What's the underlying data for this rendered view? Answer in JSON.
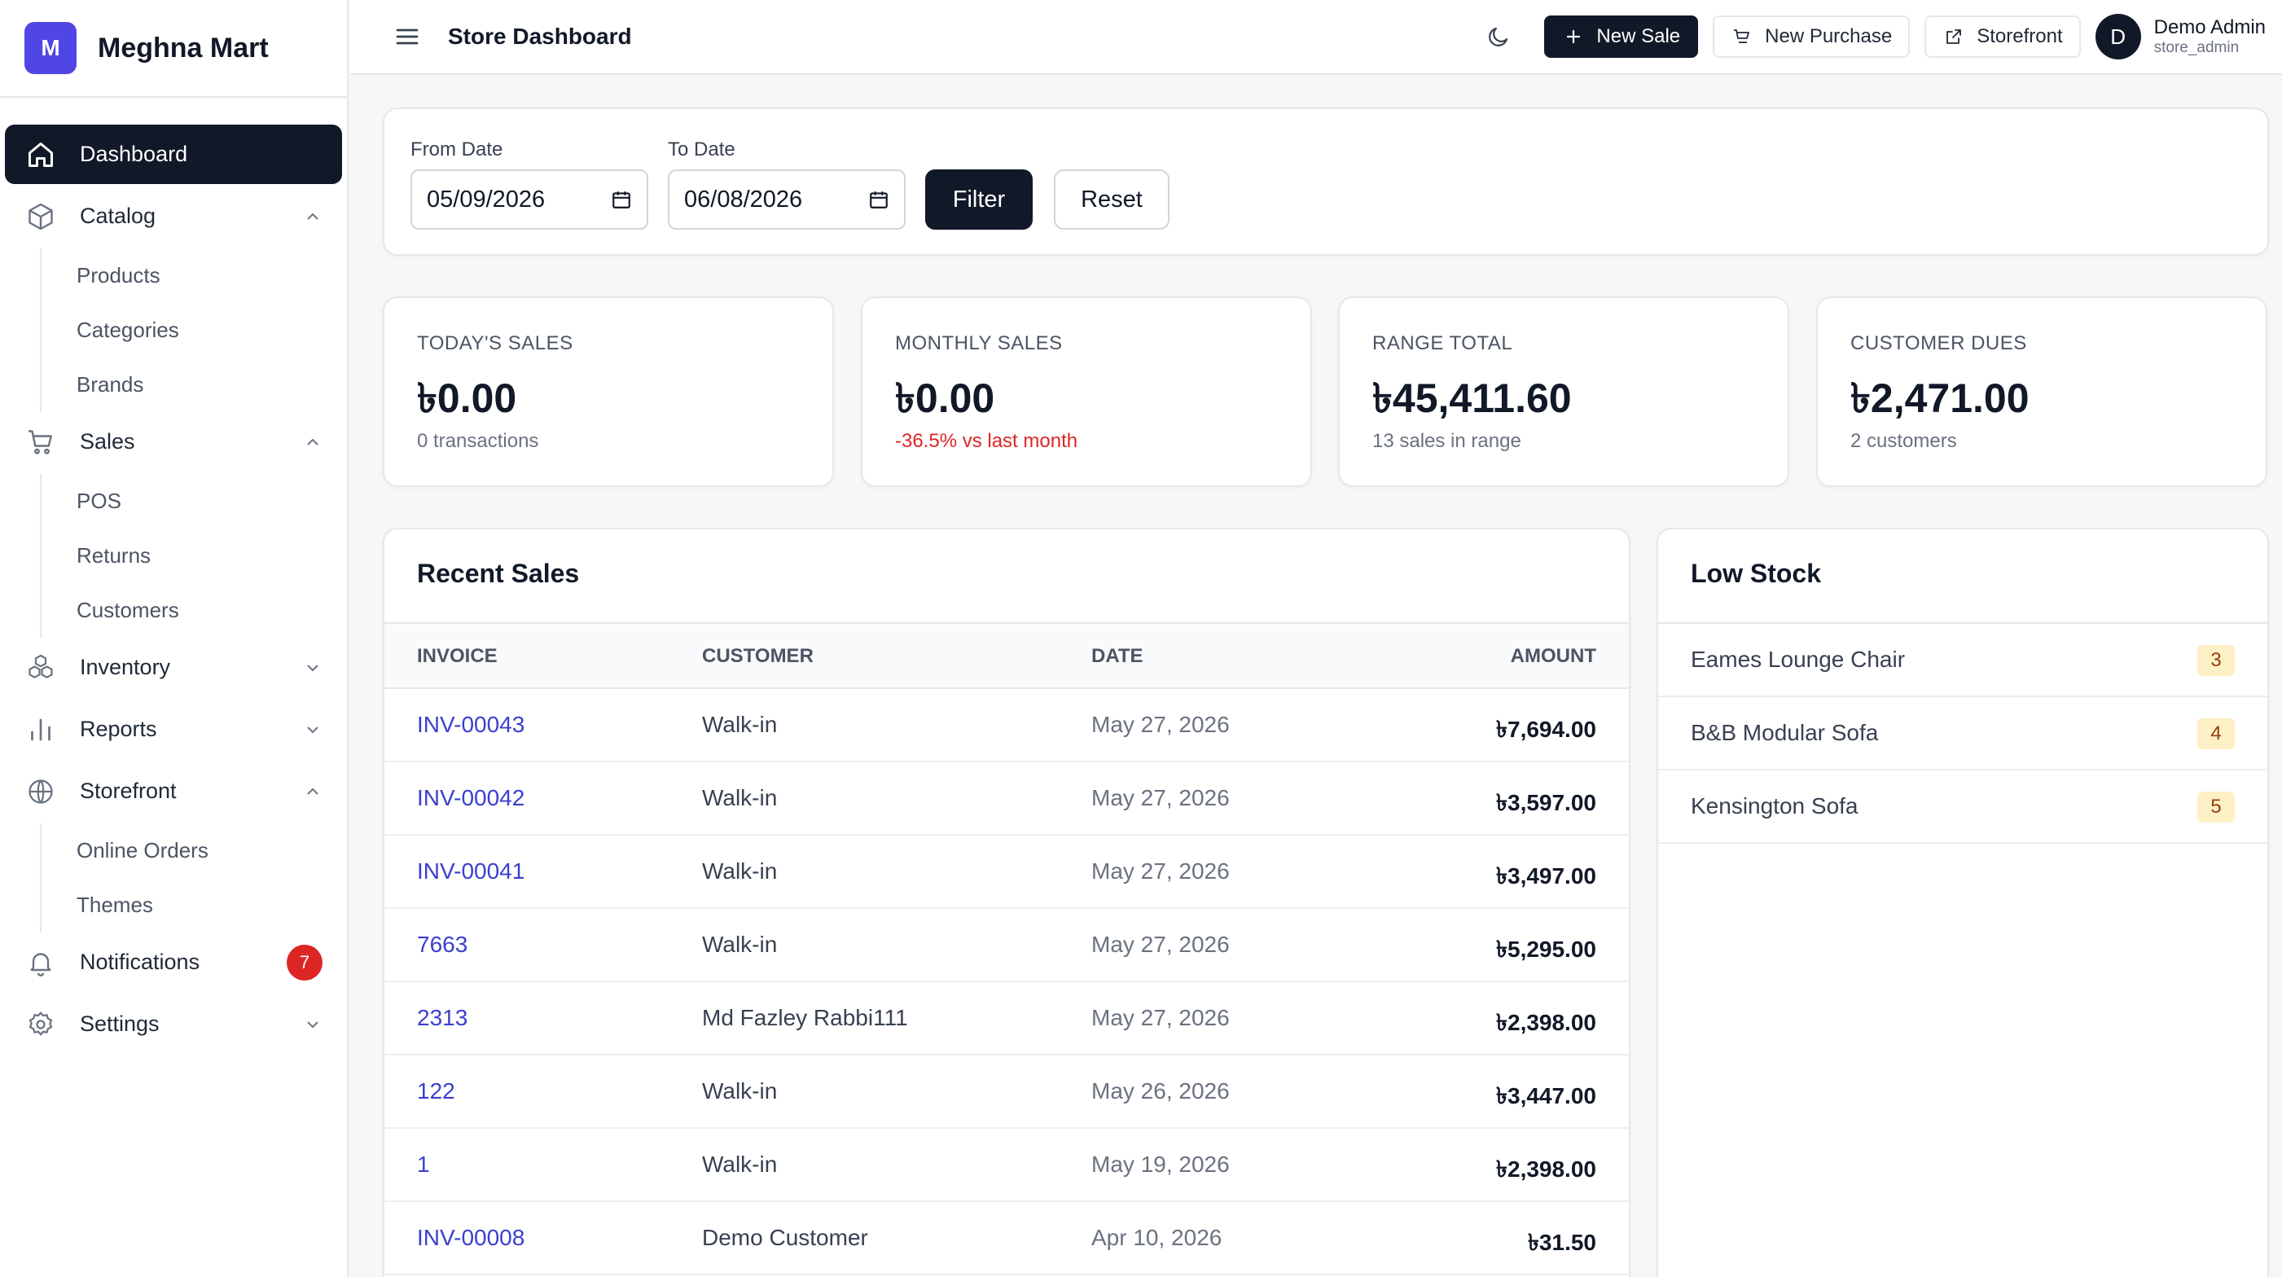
{
  "brand": {
    "initial": "M",
    "name": "Meghna Mart"
  },
  "sidebar": {
    "dashboard": "Dashboard",
    "catalog": {
      "label": "Catalog",
      "items": [
        "Products",
        "Categories",
        "Brands"
      ]
    },
    "sales": {
      "label": "Sales",
      "items": [
        "POS",
        "Returns",
        "Customers"
      ]
    },
    "inventory": "Inventory",
    "reports": "Reports",
    "storefront": {
      "label": "Storefront",
      "items": [
        "Online Orders",
        "Themes"
      ]
    },
    "notifications": {
      "label": "Notifications",
      "count": "7"
    },
    "settings": "Settings"
  },
  "header": {
    "title": "Store Dashboard",
    "new_sale": "New Sale",
    "new_purchase": "New Purchase",
    "storefront": "Storefront",
    "user": {
      "initial": "D",
      "name": "Demo Admin",
      "role": "store_admin"
    }
  },
  "filter": {
    "from_label": "From Date",
    "from_value": "05/09/2026",
    "to_label": "To Date",
    "to_value": "06/08/2026",
    "filter_button": "Filter",
    "reset_button": "Reset"
  },
  "stats": [
    {
      "label": "TODAY'S SALES",
      "value": "৳0.00",
      "sub": "0 transactions"
    },
    {
      "label": "MONTHLY SALES",
      "value": "৳0.00",
      "sub": "-36.5% vs last month"
    },
    {
      "label": "RANGE TOTAL",
      "value": "৳45,411.60",
      "sub": "13 sales in range"
    },
    {
      "label": "CUSTOMER DUES",
      "value": "৳2,471.00",
      "sub": "2 customers"
    }
  ],
  "recent_sales": {
    "title": "Recent Sales",
    "columns": {
      "invoice": "INVOICE",
      "customer": "CUSTOMER",
      "date": "DATE",
      "amount": "AMOUNT"
    },
    "rows": [
      {
        "invoice": "INV-00043",
        "customer": "Walk-in",
        "date": "May 27, 2026",
        "amount": "৳7,694.00"
      },
      {
        "invoice": "INV-00042",
        "customer": "Walk-in",
        "date": "May 27, 2026",
        "amount": "৳3,597.00"
      },
      {
        "invoice": "INV-00041",
        "customer": "Walk-in",
        "date": "May 27, 2026",
        "amount": "৳3,497.00"
      },
      {
        "invoice": "7663",
        "customer": "Walk-in",
        "date": "May 27, 2026",
        "amount": "৳5,295.00"
      },
      {
        "invoice": "2313",
        "customer": "Md Fazley Rabbi111",
        "date": "May 27, 2026",
        "amount": "৳2,398.00"
      },
      {
        "invoice": "122",
        "customer": "Walk-in",
        "date": "May 26, 2026",
        "amount": "৳3,447.00"
      },
      {
        "invoice": "1",
        "customer": "Walk-in",
        "date": "May 19, 2026",
        "amount": "৳2,398.00"
      },
      {
        "invoice": "INV-00008",
        "customer": "Demo Customer",
        "date": "Apr 10, 2026",
        "amount": "৳31.50"
      }
    ]
  },
  "low_stock": {
    "title": "Low Stock",
    "items": [
      {
        "name": "Eames Lounge Chair",
        "qty": "3"
      },
      {
        "name": "B&B Modular Sofa",
        "qty": "4"
      },
      {
        "name": "Kensington Sofa",
        "qty": "5"
      }
    ]
  },
  "colors": {
    "accent": "#4f46e5",
    "dark": "#111827",
    "link": "#3b3fcf",
    "negative": "#dc2626",
    "stock_badge": "#fdf0c4"
  }
}
